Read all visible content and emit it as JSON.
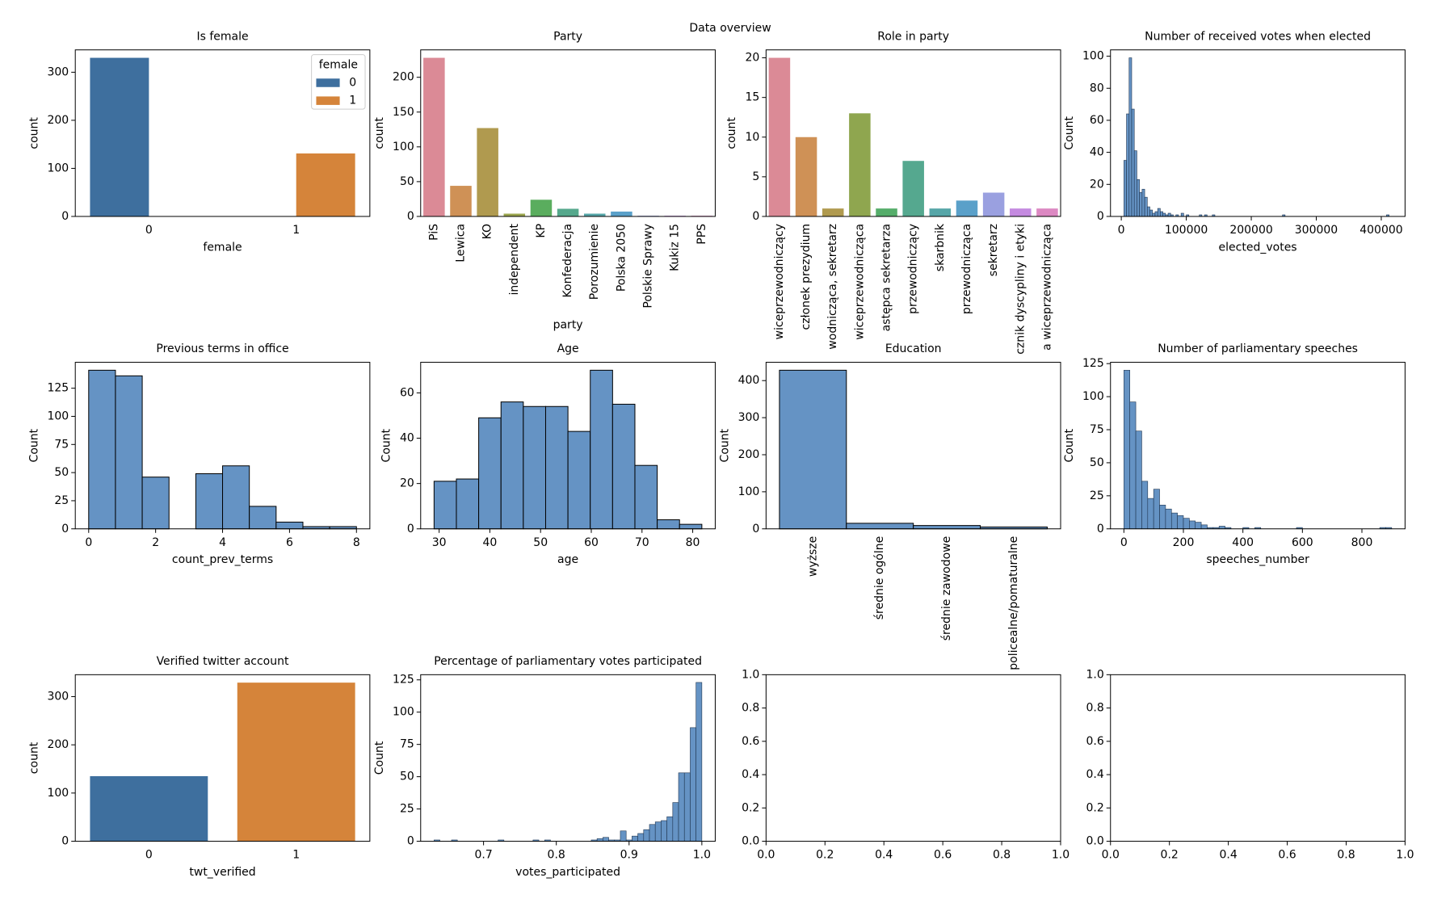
{
  "title": "Data overview",
  "chart_data": [
    {
      "type": "bar",
      "title": "Is female",
      "xlabel": "female",
      "ylabel": "count",
      "categories": [
        "0",
        "1"
      ],
      "series": [
        {
          "name": "0",
          "color": "#3e6f9e",
          "values": [
            330,
            null
          ]
        },
        {
          "name": "1",
          "color": "#d5843a",
          "values": [
            null,
            131
          ]
        }
      ],
      "legend": "upper right",
      "legend_title": "female",
      "ylim": [
        0,
        346.5
      ],
      "yticks": [
        0,
        100,
        200,
        300
      ]
    },
    {
      "type": "bar",
      "title": "Party",
      "xlabel": "party",
      "ylabel": "count",
      "categories": [
        "PiS",
        "Lewica",
        "KO",
        "independent",
        "KP",
        "Konfederacja",
        "Porozumienie",
        "Polska 2050",
        "Polskie Sprawy",
        "Kukiz 15",
        "PPS"
      ],
      "values": [
        228,
        44,
        127,
        4,
        24,
        11,
        4,
        7,
        1,
        1,
        1
      ],
      "colors": [
        "#db8a96",
        "#cf9156",
        "#b09a4f",
        "#9ba64f",
        "#5aad5e",
        "#55a88c",
        "#56a6a8",
        "#5aa0c9",
        "#9aa0e0",
        "#c48ae0",
        "#dc88c2"
      ],
      "xtick_rotation": 90,
      "ylim": [
        0,
        239.4
      ],
      "yticks": [
        0,
        50,
        100,
        150,
        200
      ]
    },
    {
      "type": "bar",
      "title": "Role in party",
      "ylabel": "count",
      "categories": [
        "wiceprzewodniczący",
        "członek prezydium",
        "wodnicząca, sekretarz",
        "wiceprzewodnicząca",
        "astępca sekretarza",
        "przewodniczący",
        "skarbnik",
        "przewodnicząca",
        "sekretarz",
        "cznik dyscypliny i etyki",
        "a wiceprzewodnicząca"
      ],
      "values": [
        20,
        10,
        1,
        13,
        1,
        7,
        1,
        2,
        3,
        1,
        1
      ],
      "colors": [
        "#db8a96",
        "#cf9156",
        "#b09a4f",
        "#8fa64f",
        "#55ad6a",
        "#55a88f",
        "#56a6a8",
        "#5aa0c9",
        "#9aa0e0",
        "#c48ae0",
        "#dc88c2"
      ],
      "xtick_rotation": 90,
      "ylim": [
        0,
        21
      ],
      "yticks": [
        0,
        5,
        10,
        15,
        20
      ]
    },
    {
      "type": "histogram",
      "title": "Number of received votes when elected",
      "xlabel": "elected_votes",
      "ylabel": "Count",
      "color": "#6593c4",
      "edgecolor": "#1f3550",
      "bins": [
        4000,
        8000,
        12000,
        16000,
        20000,
        24000,
        28000,
        32000,
        36000,
        40000,
        44000,
        48000,
        52000,
        56000,
        60000,
        64000,
        68000,
        72000,
        76000,
        80000,
        84000,
        88000,
        92000,
        96000,
        100000,
        104000,
        108000,
        112000,
        116000,
        120000,
        124000,
        128000,
        132000,
        136000,
        140000,
        144000,
        148000,
        152000,
        156000,
        160000,
        164000,
        168000,
        172000,
        176000,
        180000,
        184000,
        188000,
        192000,
        196000,
        200000,
        204000,
        208000,
        212000,
        216000,
        220000,
        224000,
        228000,
        232000,
        236000,
        240000,
        244000,
        248000,
        252000,
        256000,
        260000,
        264000,
        268000,
        272000,
        276000,
        280000,
        284000,
        288000,
        292000,
        296000,
        300000,
        304000,
        308000,
        312000,
        316000,
        320000,
        324000,
        328000,
        332000,
        336000,
        340000,
        344000,
        348000,
        352000,
        356000,
        360000,
        364000,
        368000,
        372000,
        376000,
        380000,
        384000,
        388000,
        392000,
        396000,
        400000,
        404000,
        408000,
        412000,
        416000
      ],
      "values": [
        35,
        64,
        99,
        67,
        41,
        23,
        15,
        17,
        12,
        6,
        4,
        2,
        3,
        5,
        3,
        2,
        1,
        2,
        1,
        0,
        1,
        0,
        2,
        0,
        1,
        0,
        0,
        0,
        0,
        1,
        0,
        1,
        0,
        0,
        1,
        0,
        0,
        0,
        0,
        0,
        0,
        0,
        0,
        0,
        0,
        0,
        0,
        0,
        0,
        0,
        0,
        0,
        0,
        0,
        0,
        0,
        0,
        0,
        0,
        0,
        0,
        1,
        0,
        0,
        0,
        0,
        0,
        0,
        0,
        0,
        0,
        0,
        0,
        0,
        0,
        0,
        0,
        0,
        0,
        0,
        0,
        0,
        0,
        0,
        0,
        0,
        0,
        0,
        0,
        0,
        0,
        0,
        0,
        0,
        0,
        0,
        0,
        0,
        0,
        0,
        0,
        1,
        0
      ],
      "xlim": [
        -16600,
        436600
      ],
      "xticks": [
        0,
        100000,
        200000,
        300000,
        400000
      ],
      "ylim": [
        0,
        103.95
      ],
      "yticks": [
        0,
        20,
        40,
        60,
        80,
        100
      ]
    },
    {
      "type": "histogram",
      "title": "Previous terms in office",
      "xlabel": "count_prev_terms",
      "ylabel": "Count",
      "color": "#6593c4",
      "edgecolor": "#000000",
      "bins": [
        0,
        0.8,
        1.6,
        2.4,
        3.2,
        4,
        4.8,
        5.6,
        6.4,
        7.2,
        8
      ],
      "values": [
        141,
        136,
        46,
        0,
        49,
        56,
        20,
        6,
        2,
        2
      ],
      "xlim": [
        -0.4,
        8.4
      ],
      "xticks": [
        0,
        2,
        4,
        6,
        8
      ],
      "ylim": [
        0,
        148.05
      ],
      "yticks": [
        0,
        25,
        50,
        75,
        100,
        125
      ]
    },
    {
      "type": "histogram",
      "title": "Age",
      "xlabel": "age",
      "ylabel": "Count",
      "color": "#6593c4",
      "edgecolor": "#000000",
      "bins": [
        29,
        33.4,
        37.8,
        42.2,
        46.6,
        51,
        55.4,
        59.8,
        64.2,
        68.6,
        73,
        77.4,
        81.8
      ],
      "values": [
        21,
        22,
        49,
        56,
        54,
        54,
        43,
        70,
        55,
        28,
        4,
        2
      ],
      "xlim": [
        26.36,
        84.44
      ],
      "xticks": [
        30,
        40,
        50,
        60,
        70,
        80
      ],
      "ylim": [
        0,
        73.5
      ],
      "yticks": [
        0,
        20,
        40,
        60
      ]
    },
    {
      "type": "histogram",
      "title": "Education",
      "ylabel": "Count",
      "color": "#6593c4",
      "edgecolor": "#000000",
      "categories": [
        "wyższe",
        "średnie ogólne",
        "średnie zawodowe",
        "policealne/pomaturalne"
      ],
      "values": [
        428,
        15,
        9,
        5
      ],
      "xtick_rotation": 90,
      "ylim": [
        0,
        449.4
      ],
      "yticks": [
        0,
        100,
        200,
        300,
        400
      ]
    },
    {
      "type": "histogram",
      "title": "Number of parliamentary speeches",
      "xlabel": "speeches_number",
      "ylabel": "Count",
      "color": "#6593c4",
      "edgecolor": "#1f3550",
      "bins": [
        0,
        20,
        40,
        60,
        80,
        100,
        120,
        140,
        160,
        180,
        200,
        220,
        240,
        260,
        280,
        300,
        320,
        340,
        360,
        380,
        400,
        420,
        440,
        460,
        480,
        500,
        520,
        540,
        560,
        580,
        600,
        620,
        640,
        660,
        680,
        700,
        720,
        740,
        760,
        780,
        800,
        820,
        840,
        860,
        880,
        900
      ],
      "values": [
        120,
        96,
        74,
        36,
        23,
        30,
        18,
        15,
        12,
        10,
        8,
        6,
        5,
        3,
        1,
        1,
        2,
        1,
        0,
        0,
        1,
        0,
        1,
        0,
        0,
        0,
        0,
        0,
        0,
        1,
        0,
        0,
        0,
        0,
        0,
        0,
        0,
        0,
        0,
        0,
        0,
        0,
        0,
        1,
        1
      ],
      "xlim": [
        -45,
        945
      ],
      "xticks": [
        0,
        200,
        400,
        600,
        800
      ],
      "ylim": [
        0,
        126
      ],
      "yticks": [
        0,
        25,
        50,
        75,
        100,
        125
      ]
    },
    {
      "type": "bar",
      "title": "Verified twitter account",
      "xlabel": "twt_verified",
      "ylabel": "count",
      "categories": [
        "0",
        "1"
      ],
      "values": [
        135,
        329
      ],
      "colors": [
        "#3e6f9e",
        "#d5843a"
      ],
      "ylim": [
        0,
        345.45
      ],
      "yticks": [
        0,
        100,
        200,
        300
      ]
    },
    {
      "type": "histogram",
      "title": "Percentage of parliamentary votes participated",
      "xlabel": "votes_participated",
      "ylabel": "Count",
      "color": "#6593c4",
      "edgecolor": "#1f3550",
      "bins": [
        0.632,
        0.64,
        0.648,
        0.656,
        0.664,
        0.672,
        0.68,
        0.688,
        0.696,
        0.704,
        0.712,
        0.72,
        0.728,
        0.736,
        0.744,
        0.752,
        0.76,
        0.768,
        0.776,
        0.784,
        0.792,
        0.8,
        0.808,
        0.816,
        0.824,
        0.832,
        0.84,
        0.848,
        0.856,
        0.864,
        0.872,
        0.88,
        0.888,
        0.896,
        0.904,
        0.912,
        0.92,
        0.928,
        0.936,
        0.944,
        0.952,
        0.96,
        0.968,
        0.976,
        0.984,
        0.992,
        1.0
      ],
      "values": [
        1,
        0,
        0,
        1,
        0,
        0,
        0,
        0,
        0,
        0,
        0,
        1,
        0,
        0,
        0,
        0,
        0,
        1,
        0,
        1,
        0,
        0,
        0,
        0,
        0,
        0,
        0,
        1,
        2,
        3,
        1,
        1,
        8,
        1,
        4,
        6,
        9,
        13,
        15,
        16,
        19,
        30,
        53,
        53,
        88,
        123
      ],
      "xlim": [
        0.6136,
        1.0184
      ],
      "xticks": [
        0.7,
        0.8,
        0.9,
        {
          "value": 1,
          "label": "1.0"
        }
      ],
      "ylim": [
        0,
        129
      ],
      "yticks": [
        0,
        25,
        50,
        75,
        100,
        125
      ]
    },
    {
      "type": "blank",
      "xlim": [
        0,
        1
      ],
      "xticks": [
        {
          "value": 0,
          "label": "0.0"
        },
        0.2,
        0.4,
        0.6,
        0.8,
        {
          "value": 1,
          "label": "1.0"
        }
      ],
      "ylim": [
        0,
        1
      ],
      "yticks": [
        {
          "value": 0,
          "label": "0.0"
        },
        0.2,
        0.4,
        0.6,
        0.8,
        {
          "value": 1,
          "label": "1.0"
        }
      ]
    },
    {
      "type": "blank",
      "xlim": [
        0,
        1
      ],
      "xticks": [
        {
          "value": 0,
          "label": "0.0"
        },
        0.2,
        0.4,
        0.6,
        0.8,
        {
          "value": 1,
          "label": "1.0"
        }
      ],
      "ylim": [
        0,
        1
      ],
      "yticks": [
        {
          "value": 0,
          "label": "0.0"
        },
        0.2,
        0.4,
        0.6,
        0.8,
        {
          "value": 1,
          "label": "1.0"
        }
      ]
    }
  ]
}
